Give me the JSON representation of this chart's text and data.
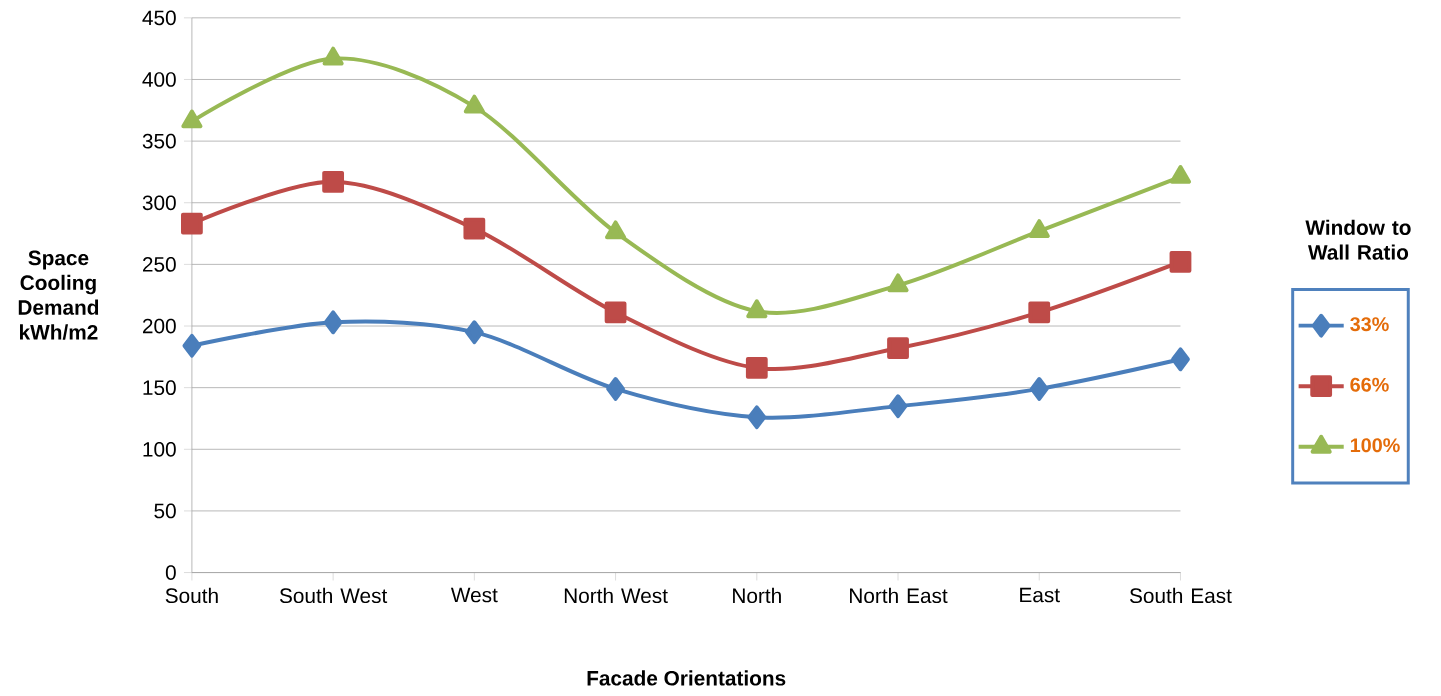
{
  "chart_data": {
    "type": "line",
    "xlabel": "Facade Orientations",
    "ylabel": "Space Cooling Demand kWh/m2",
    "legend_title": "Window to Wall Ratio",
    "legend": "right",
    "grid": "y",
    "line_style": "solid",
    "categories": [
      "South",
      "South West",
      "West",
      "North West",
      "North",
      "North East",
      "East",
      "South East"
    ],
    "ylim": [
      0,
      450
    ],
    "yticks": [
      0,
      50,
      100,
      150,
      200,
      250,
      300,
      350,
      400,
      450
    ],
    "series": [
      {
        "name": "33%",
        "color": "#4a7ebb",
        "marker": "diamond",
        "values": [
          184,
          203,
          195,
          149,
          126,
          135,
          149,
          173
        ]
      },
      {
        "name": "66%",
        "color": "#be4b48",
        "marker": "square",
        "values": [
          283,
          317,
          279,
          211,
          166,
          182,
          211,
          252
        ]
      },
      {
        "name": "100%",
        "color": "#98b954",
        "marker": "triangle",
        "values": [
          366,
          417,
          378,
          276,
          212,
          233,
          277,
          321
        ]
      }
    ]
  }
}
